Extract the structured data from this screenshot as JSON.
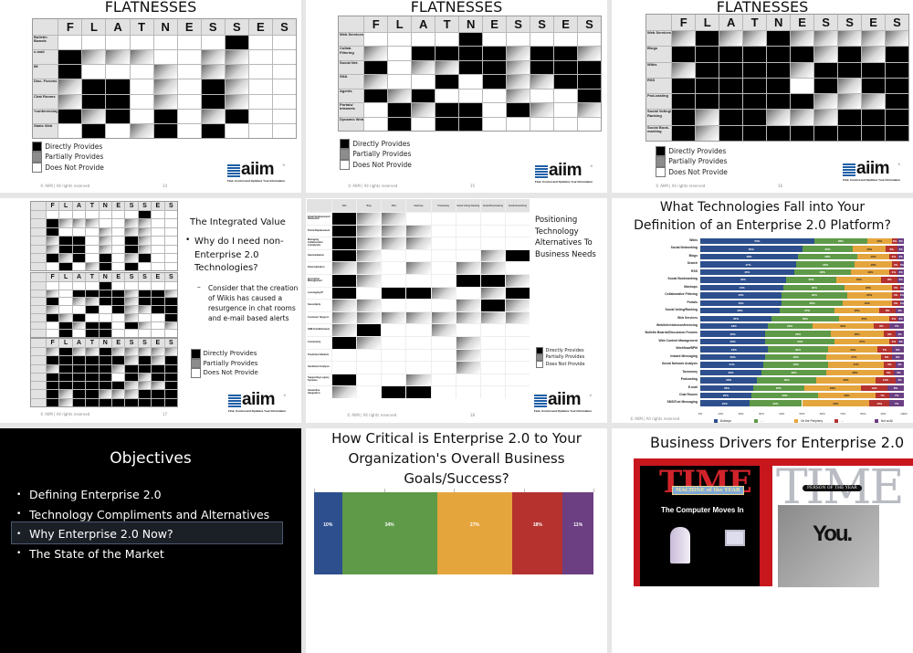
{
  "legend": [
    "Directly Provides",
    "Partially Provides",
    "Does Not Provide"
  ],
  "footer": "© AIIM | All rights reserved",
  "logo": {
    "word": "aiim",
    "reg": "®",
    "tagline": "Find, Control and Optimize Your Information"
  },
  "letters": [
    "F",
    "L",
    "A",
    "T",
    "N",
    "E",
    "S",
    "S",
    "E",
    "S"
  ],
  "slides": [
    {
      "title": "FLATNESSES",
      "page": "14",
      "grid": {
        "rows": [
          {
            "label": "Bulletin Boards",
            "cells": "NNNNNNNDNN"
          },
          {
            "label": "e-mail",
            "cells": "DPPPNNPPNN"
          },
          {
            "label": "IM",
            "cells": "DNNNPNPPNN"
          },
          {
            "label": "Disc. Forums",
            "cells": "PDDNPNDPNN"
          },
          {
            "label": "Chat Rooms",
            "cells": "PDDNPNDPNN"
          },
          {
            "label": "*conferencing",
            "cells": "DPDNDNPDNN"
          },
          {
            "label": "Static Web",
            "cells": "NDNPDNDNNN"
          }
        ]
      }
    },
    {
      "title": "FLATNESSES",
      "page": "15",
      "grid": {
        "rows": [
          {
            "label": "Web Services",
            "cells": "NNNNDNNNNN"
          },
          {
            "label": "Collab. Filtering",
            "cells": "PNDDDDPDDP"
          },
          {
            "label": "Social Net.",
            "cells": "DNPPDDPDDD"
          },
          {
            "label": "SNA",
            "cells": "PNNDNDPPDD"
          },
          {
            "label": "Agents",
            "cells": "DPDNNNPNND"
          },
          {
            "label": "Portals/ Intranets",
            "cells": "NDPDDNDPNP"
          },
          {
            "label": "Dynamic Web",
            "cells": "NDNDDNNNNN"
          }
        ]
      }
    },
    {
      "title": "FLATNESSES",
      "page": "16",
      "grid": {
        "rows": [
          {
            "label": "Web Services",
            "cells": "PDPPDPPPPP"
          },
          {
            "label": "Blogs",
            "cells": "DDDDDDPDPD"
          },
          {
            "label": "Wikis",
            "cells": "PDDDDPDDDD"
          },
          {
            "label": "RSS",
            "cells": "DDDDDNDPDD"
          },
          {
            "label": "Pod-casting",
            "cells": "DDDDDDPPPD"
          },
          {
            "label": "Social Voting/ Ranking",
            "cells": "DPDDPPPDDD"
          },
          {
            "label": "Social Book-marking",
            "cells": "DPDDDDDDDD"
          }
        ]
      }
    },
    {
      "title": "The Integrated Value",
      "page": "17",
      "bullet": "Why do I need non-Enterprise 2.0 Technologies?",
      "sub_bullet": "Consider that the creation of Wikis has caused a resurgence in chat rooms and e-mail based alerts"
    },
    {
      "title": "Positioning Technology Alternatives To Business Needs",
      "page": "18",
      "grid": {
        "columns": [
          "Wiki",
          "Blog",
          "RSS",
          "Mashups",
          "Podcasting",
          "Social Voting/ Ranking",
          "Social Bookmarking",
          "Social Networking"
        ],
        "rows": [
          {
            "label": "Email Replacement/ Reduction",
            "cells": "DPPNNNNN"
          },
          {
            "label": "Portal Replacement",
            "cells": "DPPPNNNN"
          },
          {
            "label": "Managing Collaboration Complexity",
            "cells": "DPPPNNNN"
          },
          {
            "label": "Intermediation",
            "cells": "DPNNNNPD"
          },
          {
            "label": "Externalization",
            "cells": "PPNPNPPN"
          },
          {
            "label": "Innovation Management",
            "cells": "DPNNNDDP"
          },
          {
            "label": "Leveraging IP",
            "cells": "DNDDPNPD"
          },
          {
            "label": "Serendipity",
            "cells": "PPNNNPDP"
          },
          {
            "label": "Customer Support",
            "cells": "PPPPPPPP"
          },
          {
            "label": "SME Establishment",
            "cells": "PDNNPNNN"
          },
          {
            "label": "Community",
            "cells": "DPNNNPNN"
          },
          {
            "label": "Prediction Markets",
            "cells": "NNNNNPNN"
          },
          {
            "label": "Sentiment Analysis",
            "cells": "NNNNNPNN"
          },
          {
            "label": "Supporting Legacy Systems",
            "cells": "DNNPNNNN"
          },
          {
            "label": "Streamline Integration",
            "cells": "PNDDNNNN"
          }
        ]
      }
    },
    {
      "title_lines": [
        "What Technologies Fall into Your",
        "Definition of an Enterprise 2.0 Platform?"
      ]
    },
    {
      "title": "Objectives",
      "bullets": [
        "Defining Enterprise 2.0",
        "Technology Compliments and Alternatives",
        "Why Enterprise 2.0 Now?",
        "The State of the Market"
      ],
      "highlighted_index": 2
    },
    {
      "title_lines": [
        "How Critical is Enterprise 2.0 to Your",
        "Organization's Overall Business",
        "Goals/Success?"
      ]
    },
    {
      "title": "Business Drivers for Enterprise 2.0",
      "cover1": {
        "masthead": "TIME",
        "banner": "MACHINE of the YEAR",
        "headline": "The Computer Moves In"
      },
      "cover2": {
        "masthead": "TIME",
        "banner": "PERSON OF THE YEAR",
        "headline": "You."
      }
    }
  ],
  "chart_data": [
    {
      "type": "bar",
      "orientation": "horizontal",
      "stacked": true,
      "categories": [
        "Wikis",
        "Social Networking",
        "Blogs",
        "Search",
        "RSS",
        "Social Bookmarking",
        "Mashups",
        "Collaborative Filtering",
        "Portals",
        "Social Voting/Ranking",
        "Web Services",
        "Web/tele/videoconferencing",
        "Bulletin Boards/Discussion Forums",
        "Web Content Management",
        "Workflow/BPM",
        "Instant Messaging",
        "Social Network Analysis",
        "Taxonomy",
        "Podcasting",
        "E-mail",
        "Chat Rooms",
        "SMS/Text Messaging"
      ],
      "series": [
        {
          "name": "Bullseye",
          "color": "#2d4f8d",
          "values": [
            56,
            50,
            48,
            47,
            46,
            42,
            41,
            40,
            40,
            39,
            35,
            33,
            32,
            32,
            33,
            32,
            31,
            30,
            28,
            26,
            25,
            24
          ]
        },
        {
          "name": "...",
          "color": "#5f9a48",
          "values": [
            26,
            25,
            29,
            29,
            28,
            25,
            30,
            32,
            30,
            27,
            33,
            22,
            32,
            34,
            30,
            30,
            32,
            32,
            29,
            25,
            33,
            26
          ]
        },
        {
          "name": "On the Periphery",
          "color": "#e5a53d",
          "values": [
            12,
            16,
            16,
            18,
            19,
            22,
            23,
            22,
            24,
            22,
            25,
            30,
            26,
            27,
            24,
            27,
            27,
            28,
            29,
            28,
            28,
            33
          ]
        },
        {
          "name": "...",
          "color": "#b5322f",
          "values": [
            3,
            6,
            4,
            4,
            4,
            8,
            4,
            4,
            4,
            8,
            4,
            8,
            6,
            4,
            7,
            5,
            6,
            5,
            10,
            13,
            7,
            10
          ]
        },
        {
          "name": "Not at All",
          "color": "#6b3f82",
          "values": [
            3,
            3,
            3,
            2,
            3,
            3,
            2,
            2,
            2,
            4,
            3,
            7,
            4,
            3,
            6,
            6,
            4,
            5,
            4,
            8,
            7,
            7
          ]
        }
      ],
      "xlim": [
        0,
        100
      ],
      "xticks": [
        "0%",
        "10%",
        "20%",
        "30%",
        "40%",
        "50%",
        "60%",
        "70%",
        "80%",
        "90%",
        "100%"
      ],
      "legend": "bottom"
    },
    {
      "type": "bar",
      "orientation": "horizontal",
      "stacked": true,
      "series": [
        {
          "color": "#2d4f8d",
          "values": [
            10
          ]
        },
        {
          "color": "#5f9a48",
          "values": [
            34
          ]
        },
        {
          "color": "#e5a53d",
          "values": [
            27
          ]
        },
        {
          "color": "#b5322f",
          "values": [
            18
          ]
        },
        {
          "color": "#6b3f82",
          "values": [
            11
          ]
        }
      ],
      "xlim": [
        0,
        100
      ]
    }
  ]
}
